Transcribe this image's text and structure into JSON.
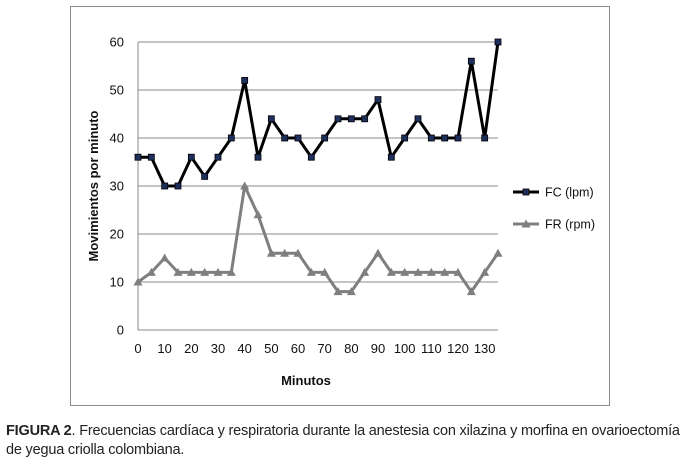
{
  "chart_data": {
    "type": "line",
    "xlabel": "Minutos",
    "ylabel": "Movimientos por minuto",
    "ylim": [
      0,
      60
    ],
    "yticks": [
      0,
      10,
      20,
      30,
      40,
      50,
      60
    ],
    "xticks": [
      0,
      10,
      20,
      30,
      40,
      50,
      60,
      70,
      80,
      90,
      100,
      110,
      120,
      130
    ],
    "x": [
      0,
      5,
      10,
      15,
      20,
      25,
      30,
      35,
      40,
      45,
      50,
      55,
      60,
      65,
      70,
      75,
      80,
      85,
      90,
      95,
      100,
      105,
      110,
      115,
      120,
      125,
      130,
      135
    ],
    "grid": "horizontal",
    "legend_position": "right",
    "series": [
      {
        "name": "FC (lpm)",
        "color": "#000000",
        "marker": "square",
        "marker_color": "#1f2f5c",
        "values": [
          36,
          36,
          30,
          30,
          36,
          32,
          36,
          40,
          52,
          36,
          44,
          40,
          40,
          36,
          40,
          44,
          44,
          44,
          48,
          36,
          40,
          44,
          40,
          40,
          40,
          56,
          40,
          60
        ]
      },
      {
        "name": "FR (rpm)",
        "color": "#7f7f7f",
        "marker": "triangle",
        "marker_color": "#7f7f7f",
        "values": [
          10,
          12,
          15,
          12,
          12,
          12,
          12,
          12,
          30,
          24,
          16,
          16,
          16,
          12,
          12,
          8,
          8,
          12,
          16,
          12,
          12,
          12,
          12,
          12,
          12,
          8,
          12,
          16
        ]
      }
    ]
  },
  "caption": {
    "label": "FIGURA 2",
    "text": ". Frecuencias cardíaca y respiratoria durante la anestesia con xilazina y morfina en ovarioectomía de yegua criolla colombiana."
  }
}
